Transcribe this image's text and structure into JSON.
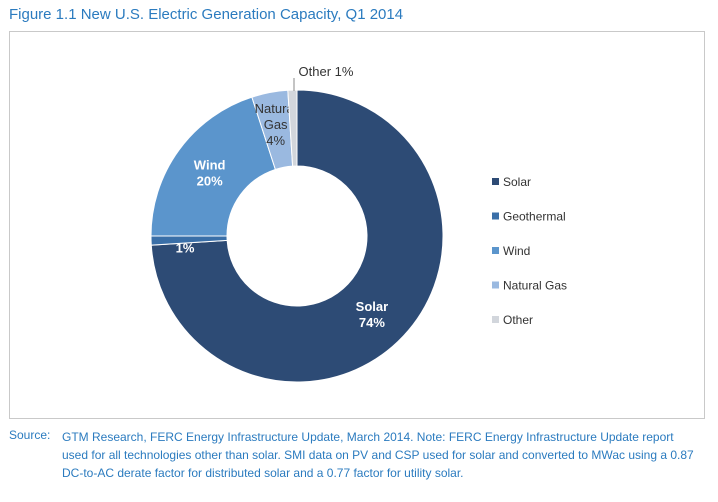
{
  "figure_title": "Figure 1.1  New U.S. Electric Generation Capacity, Q1 2014",
  "source": {
    "label": "Source:",
    "text": "GTM Research, FERC Energy Infrastructure Update, March 2014. Note: FERC Energy Infrastructure Update report used for all technologies other than solar. SMI data on PV and CSP used for solar and converted to MWac using a 0.87 DC-to-AC derate factor for distributed solar and a 0.77 factor for utility solar."
  },
  "chart_data": {
    "type": "pie",
    "variant": "donut",
    "title": "",
    "legend_position": "right",
    "slices": [
      {
        "name": "Solar",
        "value": 74,
        "label": "Solar\n74%",
        "color": "#2d4b75"
      },
      {
        "name": "Geothermal",
        "value": 1,
        "label": "Geothermal\n1%",
        "color": "#3a6fa8"
      },
      {
        "name": "Wind",
        "value": 20,
        "label": "Wind\n20%",
        "color": "#5b95cc"
      },
      {
        "name": "Natural Gas",
        "value": 4,
        "label": "Natural\nGas\n4%",
        "color": "#9ab9e0"
      },
      {
        "name": "Other",
        "value": 1,
        "label": "Other 1%",
        "color": "#d2d6dc"
      }
    ]
  }
}
